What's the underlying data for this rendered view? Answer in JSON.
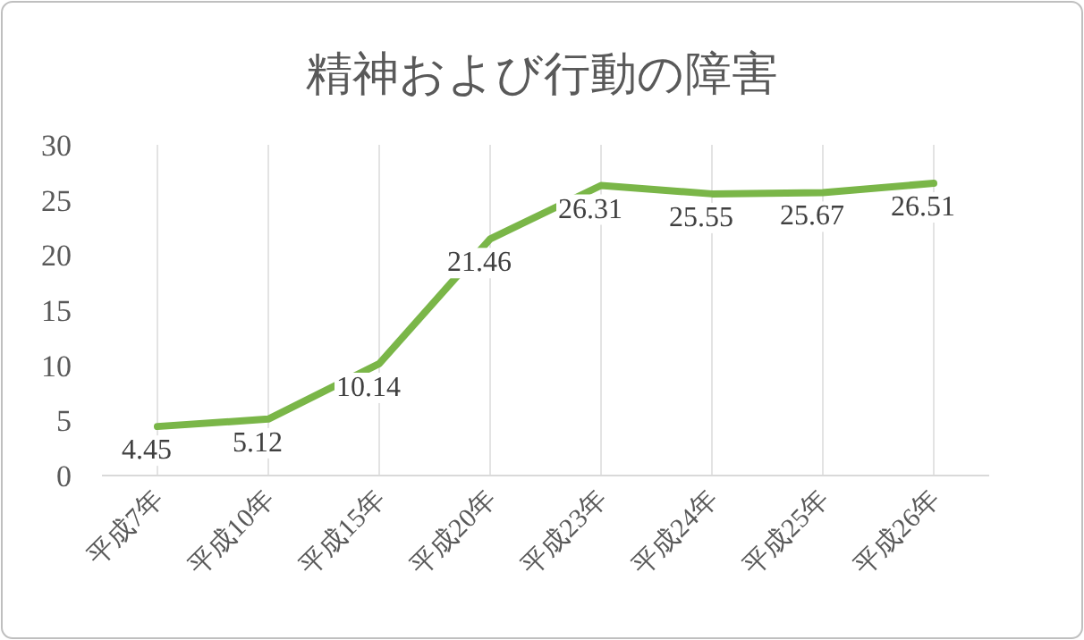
{
  "chart_data": {
    "type": "line",
    "title": "精神および行動の障害",
    "categories": [
      "平成7年",
      "平成10年",
      "平成15年",
      "平成20年",
      "平成23年",
      "平成24年",
      "平成25年",
      "平成26年"
    ],
    "values": [
      4.45,
      5.12,
      10.14,
      21.46,
      26.31,
      25.55,
      25.67,
      26.51
    ],
    "color": "#7ab648",
    "ylim": [
      0,
      30
    ],
    "yticks": [
      0,
      5,
      10,
      15,
      20,
      25,
      30
    ],
    "grid": "x",
    "data_labels": true,
    "marker": "none",
    "line_style": "solid"
  }
}
